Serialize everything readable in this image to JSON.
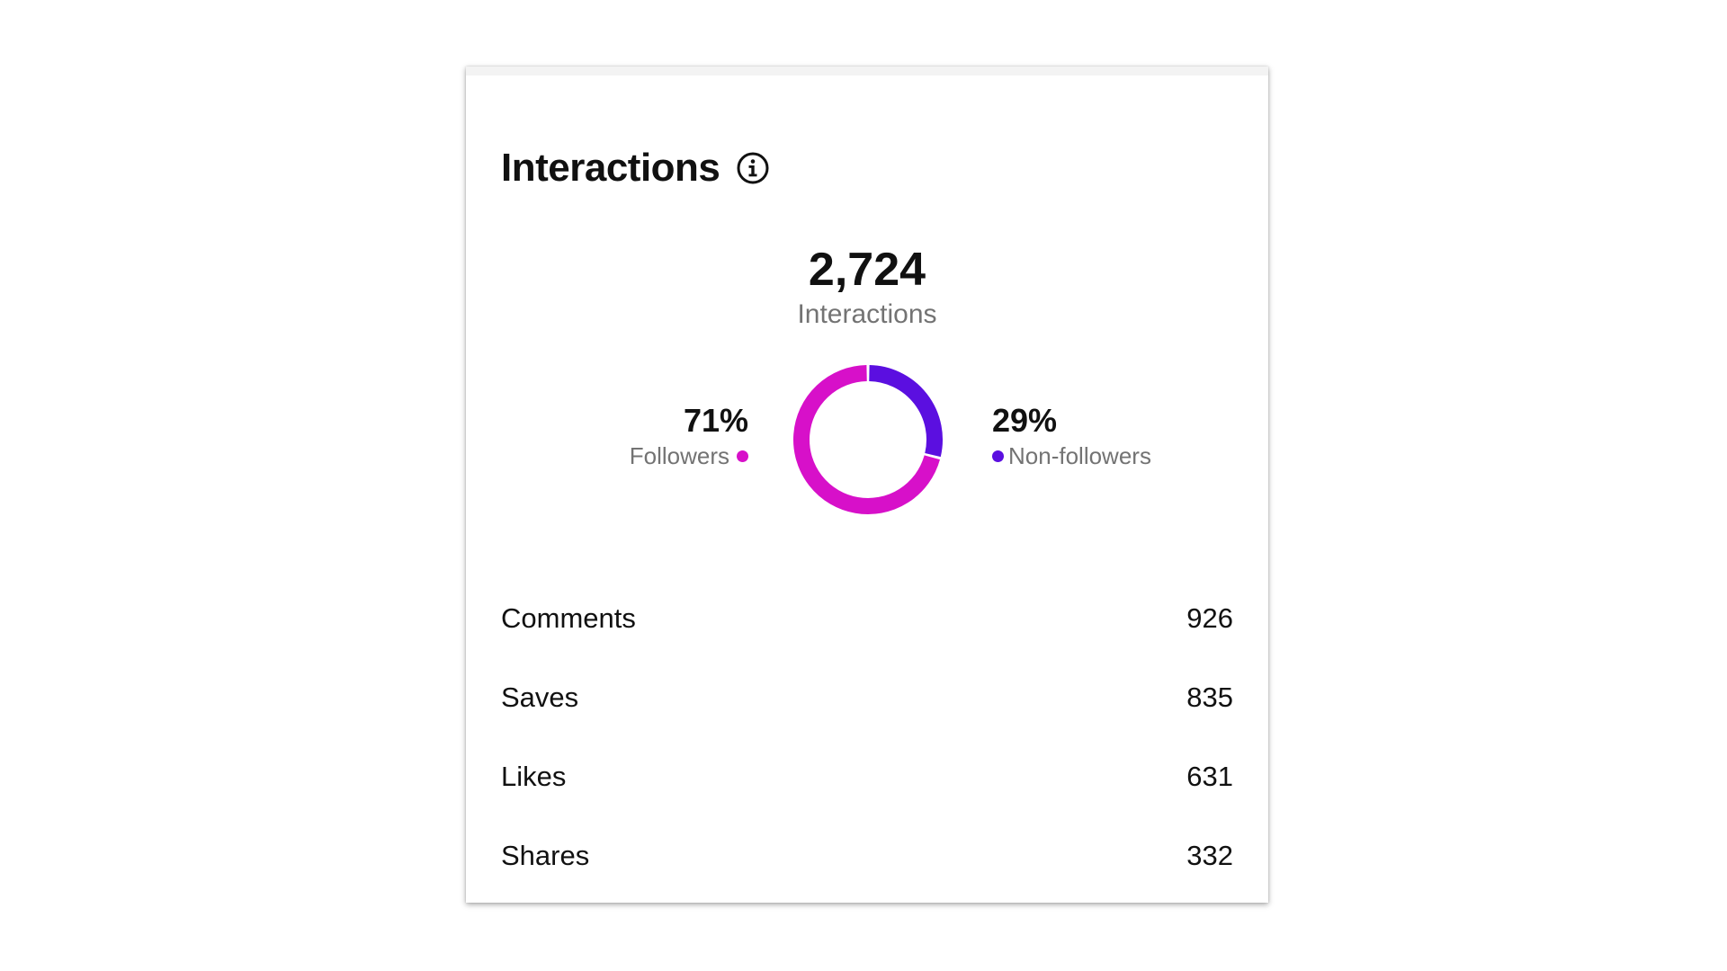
{
  "card": {
    "title": "Interactions",
    "info_icon": "info-circle-icon"
  },
  "summary": {
    "total_value": "2,724",
    "total_label": "Interactions"
  },
  "colors": {
    "followers": "#d710c9",
    "non_followers": "#5b0fe0",
    "text_primary": "#111111",
    "text_secondary": "#737373"
  },
  "chart_data": {
    "type": "pie",
    "donut": true,
    "slices": [
      {
        "name": "Followers",
        "value": 71,
        "label": "71%"
      },
      {
        "name": "Non-followers",
        "value": 29,
        "label": "29%"
      }
    ]
  },
  "segments": {
    "followers": {
      "percent": "71%",
      "label": "Followers"
    },
    "non_followers": {
      "percent": "29%",
      "label": "Non-followers"
    }
  },
  "breakdown": [
    {
      "label": "Comments",
      "value": "926"
    },
    {
      "label": "Saves",
      "value": "835"
    },
    {
      "label": "Likes",
      "value": "631"
    },
    {
      "label": "Shares",
      "value": "332"
    }
  ]
}
